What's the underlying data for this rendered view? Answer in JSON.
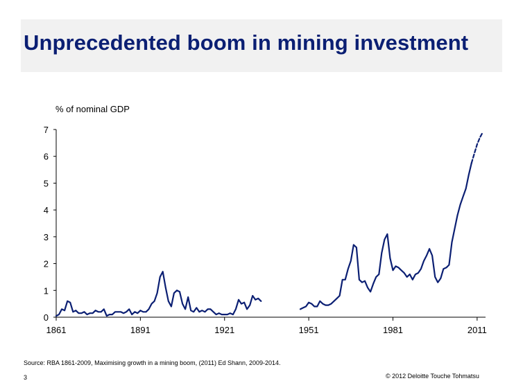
{
  "title": "Unprecedented boom in mining investment",
  "footer": {
    "source": "Source: RBA 1861-2009, Maximising growth in a mining boom, (2011) Ed Shann, 2009-2014.",
    "page_number": "3",
    "copyright": "© 2012 Deloitte Touche Tohmatsu"
  },
  "chart_data": {
    "type": "line",
    "title": "",
    "ylabel": "% of nominal GDP",
    "xlabel": "",
    "xlim": [
      1861,
      2014
    ],
    "ylim": [
      0,
      7
    ],
    "x_tick_labels": [
      "1861",
      "1891",
      "1921",
      "1951",
      "1981",
      "2011"
    ],
    "y_tick_labels": [
      "0",
      "1",
      "2",
      "3",
      "4",
      "5",
      "6",
      "7"
    ],
    "grid": false,
    "legend": "none",
    "color": "#0b1f73",
    "series": [
      {
        "segment": 1,
        "style": "solid",
        "points": [
          [
            1861,
            0.05
          ],
          [
            1862,
            0.1
          ],
          [
            1863,
            0.3
          ],
          [
            1864,
            0.25
          ],
          [
            1865,
            0.6
          ],
          [
            1866,
            0.55
          ],
          [
            1867,
            0.2
          ],
          [
            1868,
            0.25
          ],
          [
            1869,
            0.15
          ],
          [
            1870,
            0.15
          ],
          [
            1871,
            0.2
          ],
          [
            1872,
            0.1
          ],
          [
            1873,
            0.15
          ],
          [
            1874,
            0.15
          ],
          [
            1875,
            0.25
          ],
          [
            1876,
            0.2
          ],
          [
            1877,
            0.2
          ],
          [
            1878,
            0.3
          ],
          [
            1879,
            0.05
          ],
          [
            1880,
            0.1
          ],
          [
            1881,
            0.1
          ],
          [
            1882,
            0.2
          ],
          [
            1883,
            0.2
          ],
          [
            1884,
            0.2
          ],
          [
            1885,
            0.15
          ],
          [
            1886,
            0.2
          ],
          [
            1887,
            0.3
          ],
          [
            1888,
            0.1
          ],
          [
            1889,
            0.2
          ],
          [
            1890,
            0.15
          ],
          [
            1891,
            0.25
          ],
          [
            1892,
            0.2
          ],
          [
            1893,
            0.2
          ],
          [
            1894,
            0.3
          ],
          [
            1895,
            0.5
          ],
          [
            1896,
            0.6
          ],
          [
            1897,
            0.9
          ],
          [
            1898,
            1.5
          ],
          [
            1899,
            1.7
          ],
          [
            1900,
            1.1
          ],
          [
            1901,
            0.6
          ],
          [
            1902,
            0.4
          ],
          [
            1903,
            0.9
          ],
          [
            1904,
            1.0
          ],
          [
            1905,
            0.95
          ],
          [
            1906,
            0.5
          ],
          [
            1907,
            0.3
          ],
          [
            1908,
            0.75
          ],
          [
            1909,
            0.25
          ],
          [
            1910,
            0.2
          ],
          [
            1911,
            0.35
          ],
          [
            1912,
            0.2
          ],
          [
            1913,
            0.25
          ],
          [
            1914,
            0.2
          ],
          [
            1915,
            0.3
          ],
          [
            1916,
            0.3
          ],
          [
            1917,
            0.2
          ],
          [
            1918,
            0.1
          ],
          [
            1919,
            0.15
          ],
          [
            1920,
            0.1
          ],
          [
            1921,
            0.1
          ],
          [
            1922,
            0.1
          ],
          [
            1923,
            0.15
          ],
          [
            1924,
            0.1
          ],
          [
            1925,
            0.3
          ],
          [
            1926,
            0.65
          ],
          [
            1927,
            0.5
          ],
          [
            1928,
            0.55
          ],
          [
            1929,
            0.3
          ],
          [
            1930,
            0.45
          ],
          [
            1931,
            0.8
          ],
          [
            1932,
            0.65
          ],
          [
            1933,
            0.7
          ],
          [
            1934,
            0.6
          ]
        ]
      },
      {
        "segment": 2,
        "style": "solid",
        "points": [
          [
            1948,
            0.3
          ],
          [
            1949,
            0.35
          ],
          [
            1950,
            0.4
          ],
          [
            1951,
            0.55
          ],
          [
            1952,
            0.5
          ],
          [
            1953,
            0.4
          ],
          [
            1954,
            0.4
          ],
          [
            1955,
            0.6
          ],
          [
            1956,
            0.5
          ],
          [
            1957,
            0.45
          ],
          [
            1958,
            0.45
          ],
          [
            1959,
            0.5
          ],
          [
            1960,
            0.6
          ],
          [
            1961,
            0.7
          ],
          [
            1962,
            0.8
          ],
          [
            1963,
            1.4
          ],
          [
            1964,
            1.4
          ],
          [
            1965,
            1.8
          ],
          [
            1966,
            2.1
          ],
          [
            1967,
            2.7
          ],
          [
            1968,
            2.6
          ],
          [
            1969,
            1.4
          ],
          [
            1970,
            1.3
          ],
          [
            1971,
            1.35
          ],
          [
            1972,
            1.1
          ],
          [
            1973,
            0.95
          ],
          [
            1974,
            1.25
          ],
          [
            1975,
            1.5
          ],
          [
            1976,
            1.6
          ],
          [
            1977,
            2.4
          ],
          [
            1978,
            2.9
          ],
          [
            1979,
            3.1
          ],
          [
            1980,
            2.2
          ],
          [
            1981,
            1.75
          ],
          [
            1982,
            1.9
          ],
          [
            1983,
            1.85
          ],
          [
            1984,
            1.75
          ],
          [
            1985,
            1.65
          ],
          [
            1986,
            1.5
          ],
          [
            1987,
            1.6
          ],
          [
            1988,
            1.4
          ],
          [
            1989,
            1.6
          ],
          [
            1990,
            1.65
          ],
          [
            1991,
            1.8
          ],
          [
            1992,
            2.1
          ],
          [
            1993,
            2.3
          ],
          [
            1994,
            2.55
          ],
          [
            1995,
            2.3
          ],
          [
            1996,
            1.5
          ],
          [
            1997,
            1.3
          ],
          [
            1998,
            1.45
          ],
          [
            1999,
            1.8
          ],
          [
            2000,
            1.85
          ],
          [
            2001,
            1.95
          ],
          [
            2002,
            2.8
          ],
          [
            2003,
            3.3
          ],
          [
            2004,
            3.8
          ],
          [
            2005,
            4.2
          ],
          [
            2006,
            4.5
          ],
          [
            2007,
            4.8
          ],
          [
            2008,
            5.3
          ],
          [
            2009,
            5.75
          ]
        ]
      },
      {
        "segment": 3,
        "style": "dashed",
        "points": [
          [
            2009,
            5.75
          ],
          [
            2010,
            6.1
          ],
          [
            2011,
            6.45
          ],
          [
            2012,
            6.7
          ],
          [
            2013,
            6.9
          ]
        ]
      }
    ]
  }
}
